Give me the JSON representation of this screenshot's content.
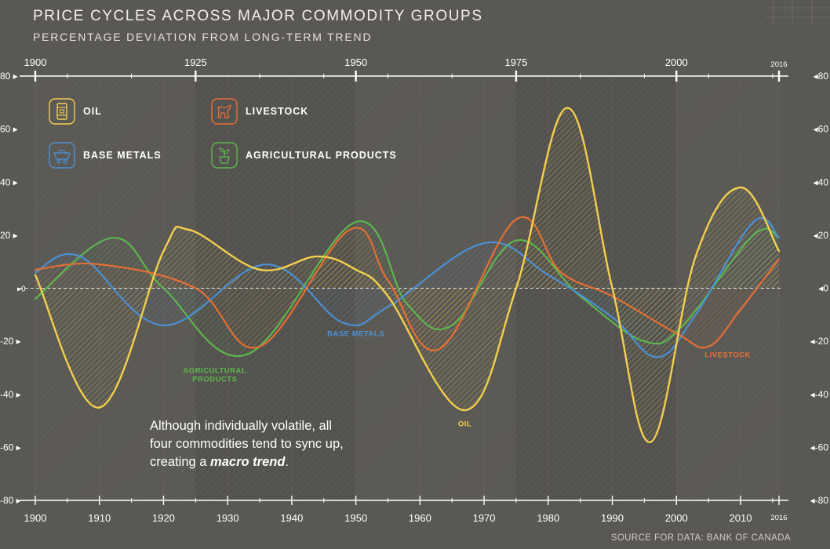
{
  "title": "PRICE CYCLES ACROSS MAJOR COMMODITY GROUPS",
  "subtitle": "PERCENTAGE DEVIATION FROM LONG-TERM TREND",
  "source": "SOURCE FOR DATA: BANK OF CANADA",
  "annotation": {
    "line1": "Although individually volatile, all",
    "line2": "four commodities tend to sync up,",
    "line3_prefix": "creating a ",
    "line3_emphasis": "macro trend",
    "line3_suffix": "."
  },
  "legend": {
    "oil": "OIL",
    "livestock": "LIVESTOCK",
    "base_metals": "BASE METALS",
    "agricultural": "AGRICULTURAL PRODUCTS"
  },
  "colors": {
    "oil": "#f2cf4e",
    "livestock": "#e86f34",
    "base_metals": "#4a92d8",
    "agricultural": "#5cb84d",
    "axis": "#ffffff",
    "background": "#5a5854"
  },
  "chart_data": {
    "type": "line",
    "title": "PRICE CYCLES ACROSS MAJOR COMMODITY GROUPS",
    "xlabel": "",
    "ylabel": "Percentage deviation from long-term trend",
    "xlim": [
      1900,
      2016
    ],
    "ylim": [
      -80,
      80
    ],
    "x_ticks_bottom": [
      "1900",
      "1910",
      "1920",
      "1930",
      "1940",
      "1950",
      "1960",
      "1970",
      "1980",
      "1990",
      "2000",
      "2010",
      "2016"
    ],
    "x_ticks_top": [
      "1900",
      "1925",
      "1950",
      "1975",
      "2000",
      "2016"
    ],
    "y_ticks_left": [
      "80",
      "60",
      "40",
      "20",
      "0",
      "-20",
      "-40",
      "-60",
      "-80"
    ],
    "y_ticks_right": [
      "80",
      "60",
      "40",
      "20",
      "0",
      "-20",
      "-40",
      "-60",
      "-80"
    ],
    "series": [
      {
        "name": "OIL",
        "key": "oil",
        "x": [
          1900,
          1910,
          1920,
          1924,
          1935,
          1944,
          1950,
          1955,
          1967,
          1975,
          1983,
          1990,
          1996,
          2003,
          2010,
          2016
        ],
        "values": [
          5,
          -45,
          14,
          22,
          7,
          12,
          7,
          -3,
          -46,
          0,
          68,
          0,
          -58,
          12,
          38,
          14
        ]
      },
      {
        "name": "LIVESTOCK",
        "key": "livestock",
        "x": [
          1900,
          1910,
          1925,
          1935,
          1949,
          1955,
          1963,
          1975,
          1982,
          1990,
          2000,
          2005,
          2010,
          2016
        ],
        "values": [
          7,
          9,
          0,
          -22,
          22,
          3,
          -23,
          26,
          6,
          -3,
          -17,
          -22,
          -8,
          11
        ]
      },
      {
        "name": "BASE METALS",
        "key": "base_metals",
        "x": [
          1900,
          1907,
          1920,
          1936,
          1948,
          1955,
          1970,
          1980,
          1990,
          1997,
          2003,
          2012,
          2016
        ],
        "values": [
          6,
          12,
          -14,
          9,
          -13,
          -7,
          17,
          5,
          -11,
          -26,
          -10,
          25,
          19
        ]
      },
      {
        "name": "AGRICULTURAL PRODUCTS",
        "key": "agricultural",
        "x": [
          1900,
          1912,
          1920,
          1933,
          1950,
          1958,
          1965,
          1975,
          1985,
          1995,
          2001,
          2012,
          2016
        ],
        "values": [
          -4,
          19,
          0,
          -25,
          25,
          -6,
          -14,
          18,
          -3,
          -20,
          -14,
          20,
          19
        ]
      }
    ],
    "annotations": [
      {
        "text": "AGRICULTURAL PRODUCTS",
        "x": 1928,
        "y": -32,
        "series": "agricultural",
        "lines": [
          "AGRICULTURAL",
          "PRODUCTS"
        ]
      },
      {
        "text": "BASE METALS",
        "x": 1950,
        "y": -18,
        "series": "base_metals",
        "lines": [
          "BASE METALS"
        ]
      },
      {
        "text": "OIL",
        "x": 1967,
        "y": -52,
        "series": "oil",
        "lines": [
          "OIL"
        ]
      },
      {
        "text": "LIVESTOCK",
        "x": 2008,
        "y": -26,
        "series": "livestock",
        "lines": [
          "LIVESTOCK"
        ]
      }
    ]
  }
}
